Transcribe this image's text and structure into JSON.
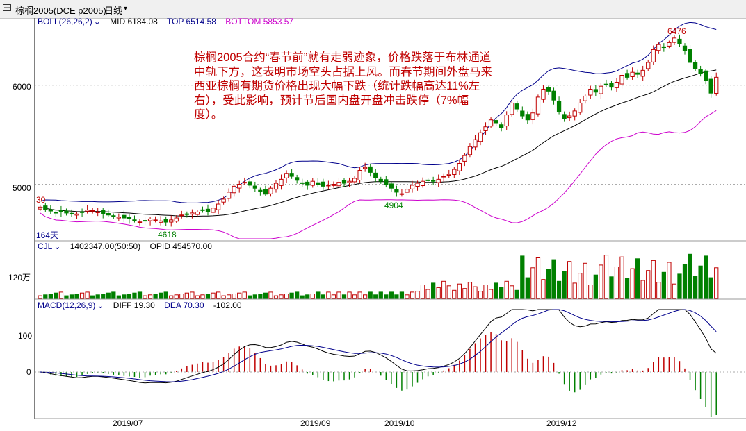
{
  "window": {
    "symbol_title": "棕榈2005(DCE p2005)",
    "period_label": "日线",
    "dropdown_glyph": "▾"
  },
  "price_panel": {
    "indicator_label": "BOLL(26,26,2)",
    "mid_label": "MID 6184.08",
    "top_label": "TOP 6514.58",
    "bottom_label": "BOTTOM 5853.57",
    "y_labels": [
      "6000",
      "5000"
    ],
    "left_value": "30",
    "days_label": "164天",
    "markers": {
      "high": "6476",
      "low_mid": "4904",
      "low_left": "4618"
    },
    "colors": {
      "mid": "#000000",
      "top": "#00008b",
      "bottom": "#cc00cc",
      "up": "#c00000",
      "down": "#008000"
    }
  },
  "annotation": {
    "text": "棕榈2005合约“春节前”就有走弱迹象，价格跌落于布林通道中轨下方，这表明市场空头占据上风。而春节期间外盘马来西亚棕榈有期货价格出现大幅下跌（统计跌幅高达11%左右），受此影响，预计节后国内盘开盘冲击跌停（7%幅度）。"
  },
  "volume_panel": {
    "indicator_label": "CJL",
    "volume_label": "1402347.00(50:50)",
    "opid_label": "OPID 454570.00",
    "y_label": "120万"
  },
  "macd_panel": {
    "indicator_label": "MACD(12,26,9)",
    "diff_label": "DIFF 19.30",
    "dea_label": "DEA 70.30",
    "macd_label": "-102.00",
    "y_labels": [
      "100",
      "0"
    ]
  },
  "x_axis": {
    "dates": [
      "2019/07",
      "2019/09",
      "2019/10",
      "2019/12"
    ]
  },
  "chart_data": {
    "type": "candlestick",
    "title": "棕榈2005(DCE p2005)",
    "xlabel": "",
    "ylabel": "",
    "ylim": [
      4450,
      6650
    ],
    "grid": true,
    "bars_note": "approximate closes read from chart, oldest to newest",
    "close_series": [
      4770,
      4745,
      4730,
      4715,
      4720,
      4710,
      4705,
      4700,
      4720,
      4740,
      4735,
      4720,
      4700,
      4690,
      4680,
      4670,
      4660,
      4650,
      4640,
      4620,
      4630,
      4650,
      4640,
      4630,
      4618,
      4640,
      4660,
      4690,
      4700,
      4710,
      4720,
      4740,
      4720,
      4760,
      4800,
      4850,
      4920,
      4980,
      5000,
      5020,
      4990,
      4960,
      4930,
      4900,
      4960,
      5010,
      5050,
      5110,
      5080,
      5040,
      5010,
      4990,
      5030,
      5000,
      4980,
      4990,
      5000,
      5020,
      5010,
      5030,
      5060,
      5140,
      5170,
      5120,
      5070,
      5030,
      5000,
      4960,
      4920,
      4904,
      4950,
      4990,
      5010,
      5030,
      5040,
      5030,
      5050,
      5080,
      5100,
      5150,
      5210,
      5290,
      5380,
      5450,
      5520,
      5580,
      5650,
      5620,
      5570,
      5700,
      5820,
      5760,
      5690,
      5650,
      5720,
      5880,
      5960,
      5940,
      5850,
      5730,
      5660,
      5690,
      5740,
      5820,
      5890,
      5960,
      5930,
      5990,
      6010,
      5980,
      6030,
      6100,
      6080,
      6130,
      6110,
      6150,
      6230,
      6360,
      6410,
      6380,
      6430,
      6476,
      6420,
      6350,
      6230,
      6170,
      6120,
      6050,
      5920,
      6080
    ],
    "boll_mid_end": 6184.08,
    "boll_top_end": 6514.58,
    "boll_bottom_end": 5853.57,
    "volume_end": 1402347,
    "opid_end": 454570,
    "macd": {
      "diff_end": 19.3,
      "dea_end": 70.3,
      "macd_end": -102.0
    }
  }
}
